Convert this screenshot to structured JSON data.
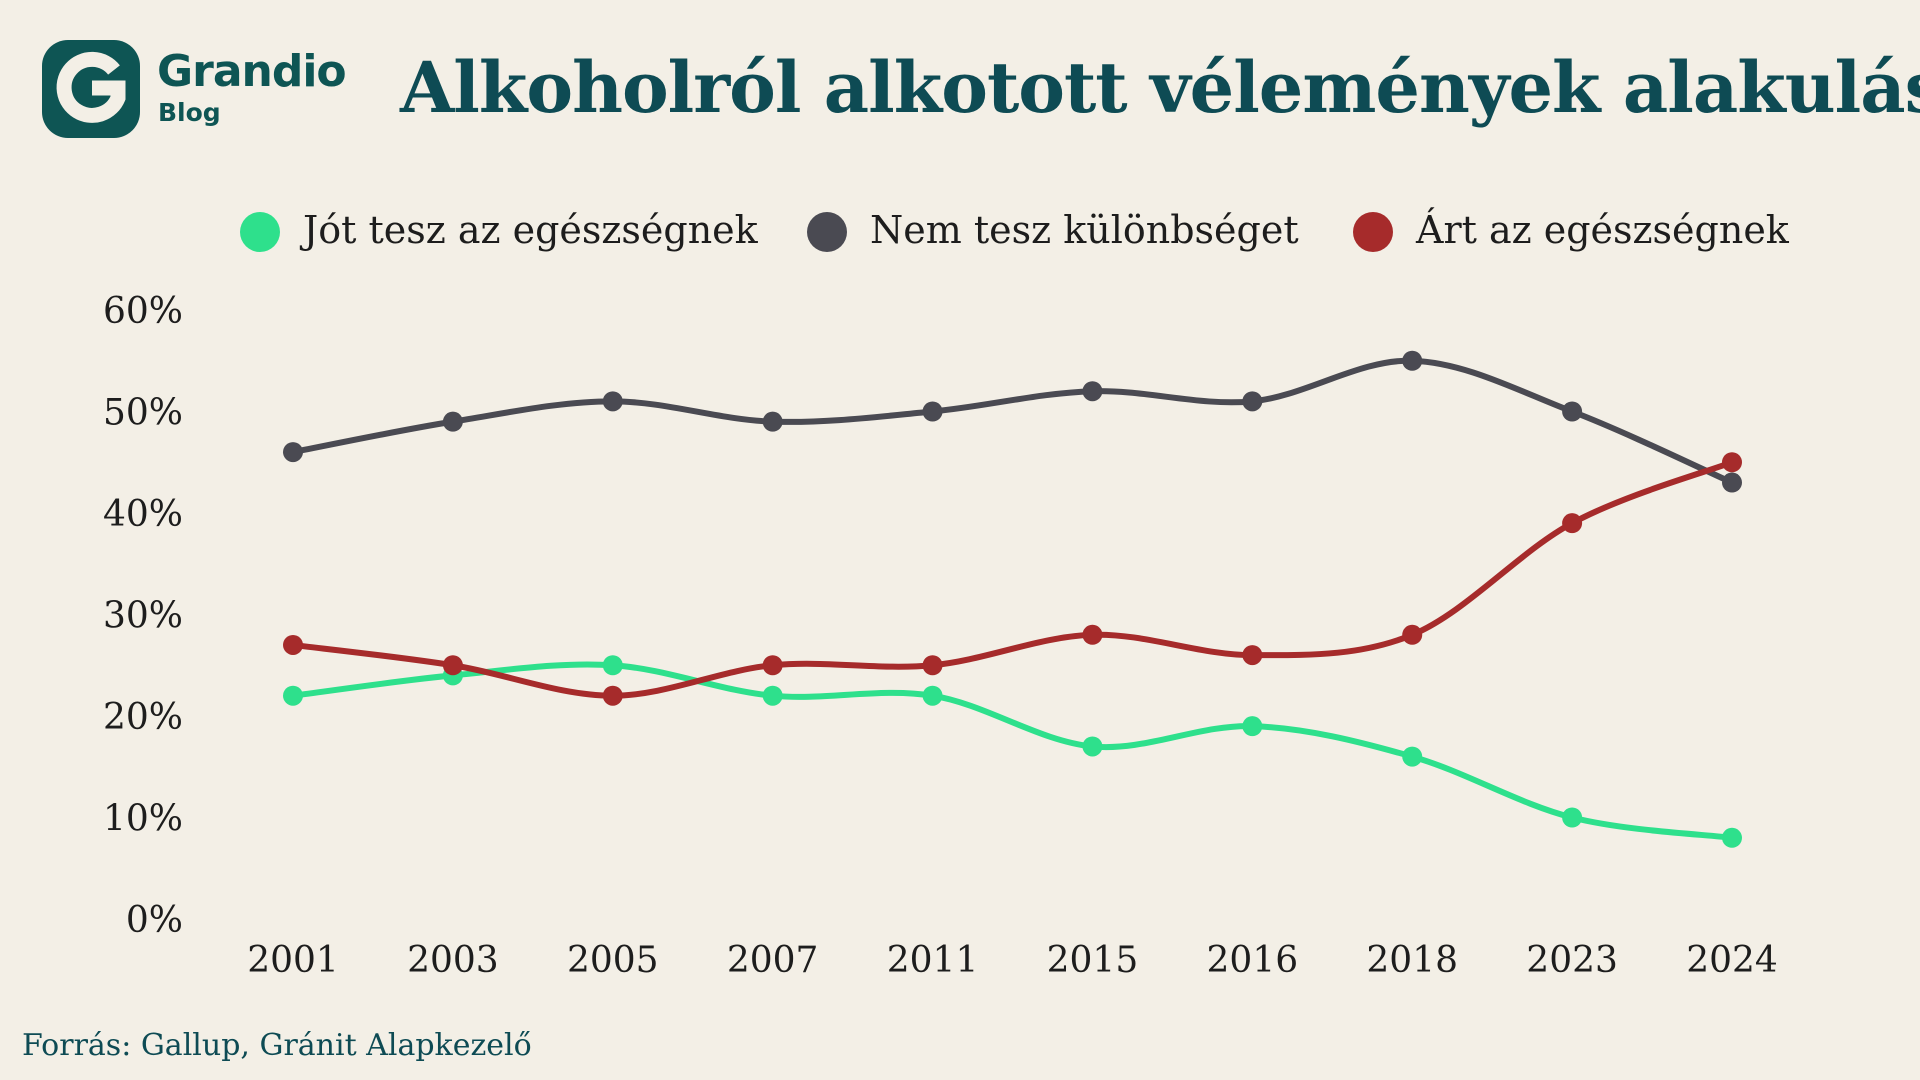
{
  "brand": {
    "name": "Grandio",
    "sub": "Blog",
    "logo_letter": "G",
    "color": "#0e5554"
  },
  "title": "Alkoholról alkotott vélemények alakulása",
  "source": "Forrás: Gallup, Gránit Alapkezelő",
  "chart_data": {
    "type": "line",
    "title": "Alkoholról alkotott vélemények alakulása",
    "xlabel": "",
    "ylabel": "",
    "x": [
      "2001",
      "2003",
      "2005",
      "2007",
      "2011",
      "2015",
      "2016",
      "2018",
      "2023",
      "2024"
    ],
    "yticks": [
      "0%",
      "10%",
      "20%",
      "30%",
      "40%",
      "50%",
      "60%"
    ],
    "ylim": [
      0,
      60
    ],
    "grid": false,
    "legend_position": "top",
    "series": [
      {
        "name": "Jót tesz az egészségnek",
        "color": "#2ee08c",
        "values": [
          22,
          24,
          25,
          22,
          22,
          17,
          19,
          16,
          10,
          8
        ]
      },
      {
        "name": "Nem tesz különbséget",
        "color": "#4a4a52",
        "values": [
          46,
          49,
          51,
          49,
          50,
          52,
          51,
          55,
          50,
          43
        ]
      },
      {
        "name": "Árt az egészségnek",
        "color": "#a62b2b",
        "values": [
          27,
          25,
          22,
          25,
          25,
          28,
          26,
          28,
          39,
          45
        ]
      }
    ]
  }
}
